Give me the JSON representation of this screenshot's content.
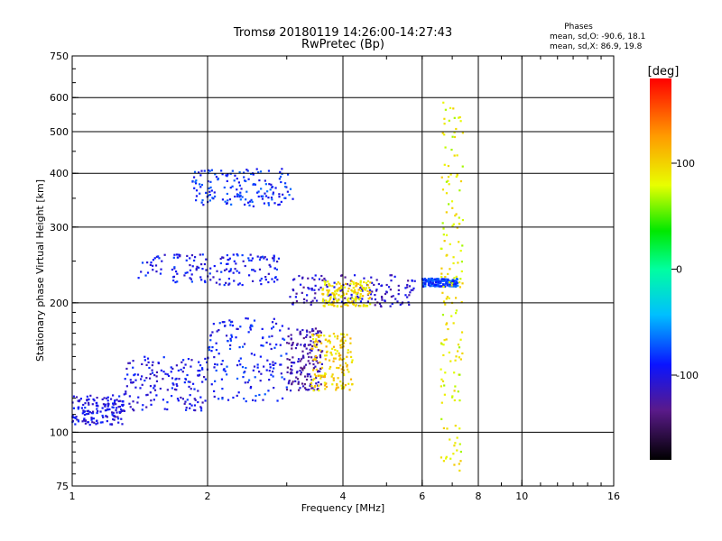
{
  "header": {
    "title_line1": "Tromsø 20180119 14:26:00-14:27:43",
    "title_line2": "RwPretec (Bp)"
  },
  "phase_box": {
    "heading": "Phases",
    "line_o": "mean, sd,O: -90.6, 18.1",
    "line_x": "mean, sd,X:  86.9, 19.8"
  },
  "colorbar": {
    "unit": "[deg]",
    "ticks": [
      "100",
      "0",
      "-100"
    ],
    "range": [
      -180,
      180
    ],
    "colormap": "rainbow"
  },
  "chart_data": {
    "type": "scatter",
    "title": "Tromsø 20180119 14:26:00-14:27:43",
    "subtitle": "RwPretec (Bp)",
    "xlabel": "Frequency [MHz]",
    "ylabel": "Stationary phase Virtual Height [km]",
    "x_scale": "log",
    "y_scale": "log",
    "xlim": [
      1,
      16
    ],
    "ylim": [
      75,
      750
    ],
    "x_ticks": [
      "1",
      "2",
      "4",
      "6",
      "8",
      "10",
      "16"
    ],
    "y_ticks": [
      "750",
      "600",
      "500",
      "400",
      "300",
      "200",
      "100",
      "75"
    ],
    "x_grid": [
      2,
      4,
      6,
      8,
      10
    ],
    "y_grid": [
      600,
      500,
      400,
      300,
      200,
      100
    ],
    "color_by": "phase (deg)",
    "clusters": [
      {
        "x_range": [
          1.0,
          1.3
        ],
        "y_range": [
          104,
          122
        ],
        "phase": -100
      },
      {
        "x_range": [
          1.3,
          2.0
        ],
        "y_range": [
          112,
          150
        ],
        "phase": -100
      },
      {
        "x_range": [
          2.0,
          3.0
        ],
        "y_range": [
          118,
          185
        ],
        "phase": -90
      },
      {
        "x_range": [
          3.0,
          3.6
        ],
        "y_range": [
          125,
          175
        ],
        "phase": -120
      },
      {
        "x_range": [
          3.4,
          4.2
        ],
        "y_range": [
          125,
          170
        ],
        "phase": 100
      },
      {
        "x_range": [
          1.4,
          2.9
        ],
        "y_range": [
          220,
          260
        ],
        "phase": -95
      },
      {
        "x_range": [
          1.85,
          3.1
        ],
        "y_range": [
          335,
          410
        ],
        "phase": -85
      },
      {
        "x_range": [
          3.0,
          5.8
        ],
        "y_range": [
          196,
          232
        ],
        "phase": -110
      },
      {
        "x_range": [
          3.6,
          4.6
        ],
        "y_range": [
          196,
          225
        ],
        "phase": 95
      },
      {
        "x_range": [
          6.0,
          7.2
        ],
        "y_range": [
          218,
          228
        ],
        "phase": -80
      },
      {
        "x_range": [
          6.6,
          7.4
        ],
        "y_range": [
          80,
          610
        ],
        "phase": 85
      }
    ]
  }
}
